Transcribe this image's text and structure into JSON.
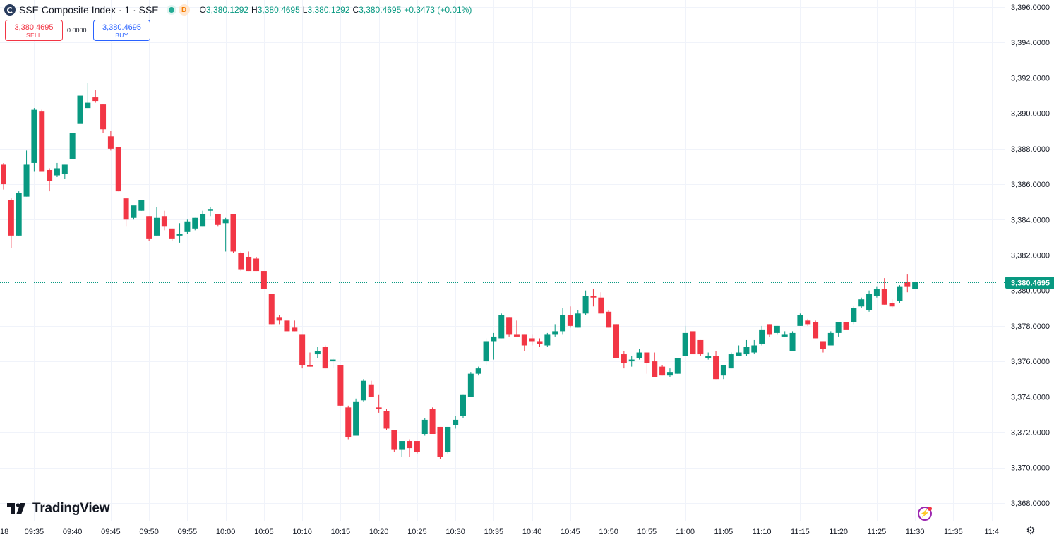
{
  "legend": {
    "symbol_title": "SSE Composite Index · 1 · SSE",
    "timeframe_badge": "D",
    "open_label": "O",
    "open_value": "3,380.1292",
    "high_label": "H",
    "high_value": "3,380.4695",
    "low_label": "L",
    "low_value": "3,380.1292",
    "close_label": "C",
    "close_value": "3,380.4695",
    "change": "+0.3473 (+0.01%)"
  },
  "trade": {
    "sell_price": "3,380.4695",
    "sell_label": "SELL",
    "spread": "0.0000",
    "buy_price": "3,380.4695",
    "buy_label": "BUY"
  },
  "branding": {
    "logo_text": "TradingView"
  },
  "controls": {
    "flash_icon": "lightning-icon",
    "settings_icon": "gear-icon"
  },
  "colors": {
    "up": "#089981",
    "down": "#f23645",
    "grid": "#f0f3fa",
    "last_price_line": "#089981",
    "axis_text": "#131722"
  },
  "chart_data": {
    "type": "candlestick",
    "interval": "1 minute",
    "ylim": [
      3367,
      3396.4
    ],
    "y_ticks": [
      3368,
      3370,
      3372,
      3374,
      3376,
      3378,
      3380,
      3382,
      3384,
      3386,
      3388,
      3390,
      3392,
      3394,
      3396
    ],
    "y_tick_labels": [
      "3,368.0000",
      "3,370.0000",
      "3,372.0000",
      "3,374.0000",
      "3,376.0000",
      "3,378.0000",
      "3,380.0000",
      "3,382.0000",
      "3,384.0000",
      "3,386.0000",
      "3,388.0000",
      "3,390.0000",
      "3,392.0000",
      "3,394.0000",
      "3,396.0000"
    ],
    "x_tick_labels": [
      "18",
      "09:35",
      "09:40",
      "09:45",
      "09:50",
      "09:55",
      "10:00",
      "10:05",
      "10:10",
      "10:15",
      "10:20",
      "10:25",
      "10:30",
      "10:35",
      "10:40",
      "10:45",
      "10:50",
      "10:55",
      "11:00",
      "11:05",
      "11:10",
      "11:15",
      "11:20",
      "11:25",
      "11:30",
      "11:35",
      "11:4"
    ],
    "last_price": 3380.4695,
    "last_price_label": "3,380.4695",
    "grid": true,
    "candles": [
      {
        "o": 3387.1,
        "h": 3387.2,
        "l": 3385.7,
        "c": 3386.0
      },
      {
        "o": 3385.1,
        "h": 3385.2,
        "l": 3382.4,
        "c": 3383.1
      },
      {
        "o": 3383.1,
        "h": 3385.6,
        "l": 3383.1,
        "c": 3385.5
      },
      {
        "o": 3385.3,
        "h": 3387.9,
        "l": 3385.3,
        "c": 3387.1
      },
      {
        "o": 3387.2,
        "h": 3390.3,
        "l": 3386.7,
        "c": 3390.2
      },
      {
        "o": 3390.1,
        "h": 3390.2,
        "l": 3386.7,
        "c": 3386.7
      },
      {
        "o": 3386.8,
        "h": 3386.9,
        "l": 3385.6,
        "c": 3386.2
      },
      {
        "o": 3386.5,
        "h": 3387.2,
        "l": 3386.4,
        "c": 3386.9
      },
      {
        "o": 3386.6,
        "h": 3387.1,
        "l": 3386.3,
        "c": 3387.1
      },
      {
        "o": 3387.4,
        "h": 3388.8,
        "l": 3387.4,
        "c": 3388.9
      },
      {
        "o": 3389.4,
        "h": 3391.0,
        "l": 3388.9,
        "c": 3391.0
      },
      {
        "o": 3390.3,
        "h": 3391.7,
        "l": 3390.3,
        "c": 3390.6
      },
      {
        "o": 3390.9,
        "h": 3391.3,
        "l": 3390.6,
        "c": 3390.7
      },
      {
        "o": 3390.5,
        "h": 3390.5,
        "l": 3388.9,
        "c": 3389.1
      },
      {
        "o": 3388.7,
        "h": 3389.0,
        "l": 3387.9,
        "c": 3388.0
      },
      {
        "o": 3388.1,
        "h": 3388.1,
        "l": 3385.6,
        "c": 3385.6
      },
      {
        "o": 3385.2,
        "h": 3385.2,
        "l": 3383.6,
        "c": 3384.0
      },
      {
        "o": 3384.1,
        "h": 3384.6,
        "l": 3384.0,
        "c": 3384.8
      },
      {
        "o": 3384.5,
        "h": 3385.1,
        "l": 3384.5,
        "c": 3385.1
      },
      {
        "o": 3384.2,
        "h": 3384.2,
        "l": 3382.8,
        "c": 3382.9
      },
      {
        "o": 3383.1,
        "h": 3384.7,
        "l": 3383.1,
        "c": 3384.1
      },
      {
        "o": 3384.2,
        "h": 3384.5,
        "l": 3383.4,
        "c": 3383.6
      },
      {
        "o": 3383.5,
        "h": 3383.5,
        "l": 3382.8,
        "c": 3382.9
      },
      {
        "o": 3383.1,
        "h": 3383.8,
        "l": 3382.7,
        "c": 3383.2
      },
      {
        "o": 3383.3,
        "h": 3384.0,
        "l": 3383.2,
        "c": 3383.9
      },
      {
        "o": 3383.5,
        "h": 3384.1,
        "l": 3383.4,
        "c": 3384.1
      },
      {
        "o": 3383.6,
        "h": 3384.5,
        "l": 3383.6,
        "c": 3384.3
      },
      {
        "o": 3384.5,
        "h": 3384.7,
        "l": 3384.2,
        "c": 3384.6
      },
      {
        "o": 3384.3,
        "h": 3384.3,
        "l": 3383.6,
        "c": 3383.7
      },
      {
        "o": 3383.8,
        "h": 3384.1,
        "l": 3382.2,
        "c": 3384.0
      },
      {
        "o": 3384.3,
        "h": 3384.3,
        "l": 3382.1,
        "c": 3382.2
      },
      {
        "o": 3382.1,
        "h": 3382.2,
        "l": 3381.1,
        "c": 3381.2
      },
      {
        "o": 3381.9,
        "h": 3382.2,
        "l": 3381.1,
        "c": 3381.1
      },
      {
        "o": 3381.8,
        "h": 3381.9,
        "l": 3381.1,
        "c": 3381.1
      },
      {
        "o": 3381.1,
        "h": 3381.1,
        "l": 3380.1,
        "c": 3380.1
      },
      {
        "o": 3379.8,
        "h": 3379.8,
        "l": 3378.1,
        "c": 3378.1
      },
      {
        "o": 3378.5,
        "h": 3378.6,
        "l": 3378.1,
        "c": 3378.3
      },
      {
        "o": 3378.3,
        "h": 3378.3,
        "l": 3377.7,
        "c": 3377.7
      },
      {
        "o": 3377.9,
        "h": 3378.3,
        "l": 3377.7,
        "c": 3377.7
      },
      {
        "o": 3377.5,
        "h": 3377.5,
        "l": 3375.6,
        "c": 3375.8
      },
      {
        "o": 3375.8,
        "h": 3376.5,
        "l": 3375.7,
        "c": 3375.7
      },
      {
        "o": 3376.4,
        "h": 3376.8,
        "l": 3376.2,
        "c": 3376.6
      },
      {
        "o": 3376.8,
        "h": 3376.9,
        "l": 3375.6,
        "c": 3375.6
      },
      {
        "o": 3376.0,
        "h": 3376.2,
        "l": 3375.6,
        "c": 3376.1
      },
      {
        "o": 3375.8,
        "h": 3375.8,
        "l": 3373.5,
        "c": 3373.5
      },
      {
        "o": 3373.4,
        "h": 3373.5,
        "l": 3371.6,
        "c": 3371.7
      },
      {
        "o": 3371.8,
        "h": 3373.9,
        "l": 3371.8,
        "c": 3373.7
      },
      {
        "o": 3373.8,
        "h": 3375.0,
        "l": 3373.7,
        "c": 3374.9
      },
      {
        "o": 3374.7,
        "h": 3374.9,
        "l": 3374.0,
        "c": 3374.0
      },
      {
        "o": 3373.4,
        "h": 3374.1,
        "l": 3373.1,
        "c": 3373.3
      },
      {
        "o": 3373.2,
        "h": 3373.3,
        "l": 3372.1,
        "c": 3372.2
      },
      {
        "o": 3372.1,
        "h": 3372.1,
        "l": 3370.9,
        "c": 3371.0
      },
      {
        "o": 3371.0,
        "h": 3371.5,
        "l": 3370.6,
        "c": 3371.5
      },
      {
        "o": 3371.5,
        "h": 3371.6,
        "l": 3370.6,
        "c": 3371.1
      },
      {
        "o": 3371.5,
        "h": 3371.5,
        "l": 3370.8,
        "c": 3370.9
      },
      {
        "o": 3371.9,
        "h": 3372.8,
        "l": 3371.8,
        "c": 3372.7
      },
      {
        "o": 3373.3,
        "h": 3373.4,
        "l": 3371.9,
        "c": 3371.9
      },
      {
        "o": 3372.3,
        "h": 3372.3,
        "l": 3370.5,
        "c": 3370.6
      },
      {
        "o": 3370.9,
        "h": 3372.3,
        "l": 3370.8,
        "c": 3372.3
      },
      {
        "o": 3372.4,
        "h": 3372.9,
        "l": 3372.2,
        "c": 3372.7
      },
      {
        "o": 3372.9,
        "h": 3374.1,
        "l": 3372.8,
        "c": 3374.1
      },
      {
        "o": 3374.0,
        "h": 3375.4,
        "l": 3374.0,
        "c": 3375.3
      },
      {
        "o": 3375.3,
        "h": 3375.7,
        "l": 3375.2,
        "c": 3375.6
      },
      {
        "o": 3376.0,
        "h": 3377.3,
        "l": 3375.8,
        "c": 3377.1
      },
      {
        "o": 3377.1,
        "h": 3377.6,
        "l": 3376.1,
        "c": 3377.4
      },
      {
        "o": 3377.3,
        "h": 3378.7,
        "l": 3377.3,
        "c": 3378.6
      },
      {
        "o": 3378.5,
        "h": 3378.5,
        "l": 3377.4,
        "c": 3377.5
      },
      {
        "o": 3377.5,
        "h": 3378.3,
        "l": 3377.5,
        "c": 3377.4
      },
      {
        "o": 3377.5,
        "h": 3377.5,
        "l": 3376.6,
        "c": 3376.9
      },
      {
        "o": 3377.3,
        "h": 3377.5,
        "l": 3376.9,
        "c": 3377.1
      },
      {
        "o": 3377.1,
        "h": 3377.3,
        "l": 3376.8,
        "c": 3377.0
      },
      {
        "o": 3376.9,
        "h": 3377.6,
        "l": 3376.8,
        "c": 3377.5
      },
      {
        "o": 3377.5,
        "h": 3378.1,
        "l": 3377.4,
        "c": 3377.7
      },
      {
        "o": 3377.7,
        "h": 3379.0,
        "l": 3377.5,
        "c": 3378.6
      },
      {
        "o": 3378.6,
        "h": 3379.1,
        "l": 3377.9,
        "c": 3378.0
      },
      {
        "o": 3377.9,
        "h": 3378.9,
        "l": 3377.9,
        "c": 3378.7
      },
      {
        "o": 3378.7,
        "h": 3380.0,
        "l": 3378.6,
        "c": 3379.7
      },
      {
        "o": 3379.7,
        "h": 3380.1,
        "l": 3379.1,
        "c": 3379.6
      },
      {
        "o": 3379.6,
        "h": 3379.9,
        "l": 3378.7,
        "c": 3378.7
      },
      {
        "o": 3378.8,
        "h": 3378.9,
        "l": 3377.9,
        "c": 3377.9
      },
      {
        "o": 3378.1,
        "h": 3378.1,
        "l": 3376.2,
        "c": 3376.2
      },
      {
        "o": 3376.4,
        "h": 3376.6,
        "l": 3375.6,
        "c": 3375.9
      },
      {
        "o": 3376.0,
        "h": 3376.3,
        "l": 3375.7,
        "c": 3376.1
      },
      {
        "o": 3376.2,
        "h": 3376.7,
        "l": 3376.1,
        "c": 3376.5
      },
      {
        "o": 3376.5,
        "h": 3376.5,
        "l": 3375.3,
        "c": 3375.9
      },
      {
        "o": 3376.0,
        "h": 3376.5,
        "l": 3375.1,
        "c": 3375.1
      },
      {
        "o": 3375.7,
        "h": 3375.8,
        "l": 3375.2,
        "c": 3375.2
      },
      {
        "o": 3375.2,
        "h": 3375.6,
        "l": 3375.1,
        "c": 3375.4
      },
      {
        "o": 3375.3,
        "h": 3376.2,
        "l": 3375.3,
        "c": 3376.2
      },
      {
        "o": 3376.3,
        "h": 3378.0,
        "l": 3376.3,
        "c": 3377.6
      },
      {
        "o": 3377.7,
        "h": 3377.9,
        "l": 3376.2,
        "c": 3376.4
      },
      {
        "o": 3377.2,
        "h": 3377.2,
        "l": 3376.3,
        "c": 3376.4
      },
      {
        "o": 3376.2,
        "h": 3376.5,
        "l": 3376.1,
        "c": 3376.3
      },
      {
        "o": 3376.3,
        "h": 3376.6,
        "l": 3375.0,
        "c": 3375.0
      },
      {
        "o": 3375.2,
        "h": 3375.8,
        "l": 3375.0,
        "c": 3375.8
      },
      {
        "o": 3375.6,
        "h": 3376.5,
        "l": 3375.6,
        "c": 3376.4
      },
      {
        "o": 3376.3,
        "h": 3376.9,
        "l": 3376.3,
        "c": 3376.5
      },
      {
        "o": 3376.4,
        "h": 3377.2,
        "l": 3376.3,
        "c": 3376.8
      },
      {
        "o": 3376.5,
        "h": 3377.2,
        "l": 3376.4,
        "c": 3376.9
      },
      {
        "o": 3377.0,
        "h": 3378.0,
        "l": 3376.9,
        "c": 3377.8
      },
      {
        "o": 3378.1,
        "h": 3378.1,
        "l": 3377.4,
        "c": 3377.5
      },
      {
        "o": 3377.6,
        "h": 3378.0,
        "l": 3377.5,
        "c": 3378.0
      },
      {
        "o": 3377.4,
        "h": 3377.7,
        "l": 3377.4,
        "c": 3377.5
      },
      {
        "o": 3376.6,
        "h": 3377.7,
        "l": 3376.6,
        "c": 3377.6
      },
      {
        "o": 3378.0,
        "h": 3378.7,
        "l": 3378.0,
        "c": 3378.6
      },
      {
        "o": 3378.3,
        "h": 3378.4,
        "l": 3378.0,
        "c": 3378.1
      },
      {
        "o": 3378.2,
        "h": 3378.3,
        "l": 3377.3,
        "c": 3377.3
      },
      {
        "o": 3377.1,
        "h": 3377.1,
        "l": 3376.5,
        "c": 3376.7
      },
      {
        "o": 3376.9,
        "h": 3377.7,
        "l": 3376.9,
        "c": 3377.6
      },
      {
        "o": 3377.6,
        "h": 3378.2,
        "l": 3377.4,
        "c": 3378.2
      },
      {
        "o": 3378.2,
        "h": 3378.3,
        "l": 3377.8,
        "c": 3377.8
      },
      {
        "o": 3378.2,
        "h": 3379.1,
        "l": 3378.1,
        "c": 3379.0
      },
      {
        "o": 3379.1,
        "h": 3379.6,
        "l": 3379.0,
        "c": 3379.5
      },
      {
        "o": 3378.9,
        "h": 3380.0,
        "l": 3378.8,
        "c": 3379.8
      },
      {
        "o": 3379.7,
        "h": 3380.2,
        "l": 3379.6,
        "c": 3380.1
      },
      {
        "o": 3380.1,
        "h": 3380.7,
        "l": 3379.2,
        "c": 3379.2
      },
      {
        "o": 3379.3,
        "h": 3379.5,
        "l": 3379.0,
        "c": 3379.1
      },
      {
        "o": 3379.4,
        "h": 3380.3,
        "l": 3379.3,
        "c": 3380.2
      },
      {
        "o": 3380.5,
        "h": 3380.9,
        "l": 3379.9,
        "c": 3380.2
      },
      {
        "o": 3380.1,
        "h": 3380.5,
        "l": 3380.1,
        "c": 3380.5
      }
    ]
  }
}
